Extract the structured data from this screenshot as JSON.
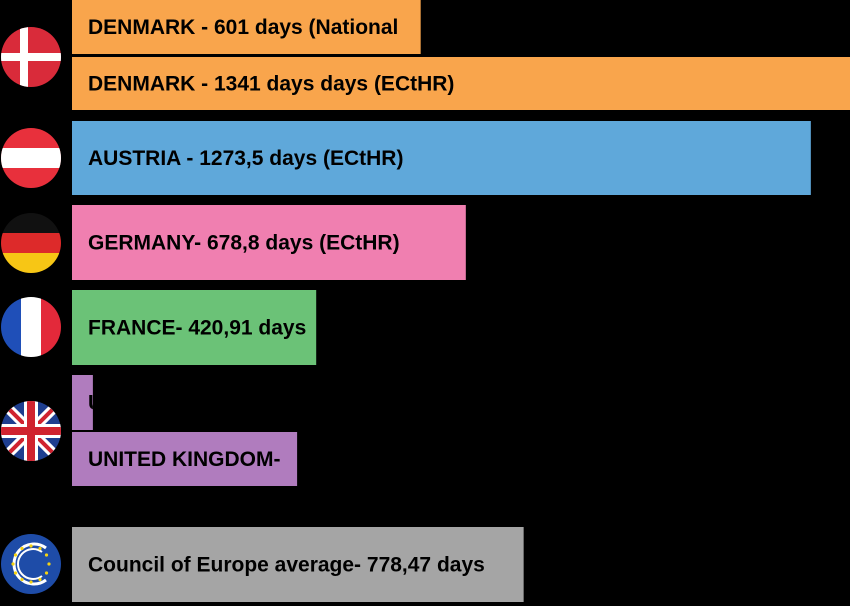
{
  "chart_data": {
    "type": "bar",
    "orientation": "horizontal",
    "title": "",
    "xlabel": "",
    "ylabel": "",
    "grid": false,
    "legend": "none",
    "background": "#000000",
    "xlim": [
      0,
      1341
    ],
    "bars": [
      {
        "label": "DENMARK - 601 days (National",
        "value": 601,
        "color": "#F9A54C",
        "flag": "denmark-flag-icon"
      },
      {
        "label": "DENMARK - 1341 days days (ECtHR)",
        "value": 1341,
        "color": "#F9A54C",
        "flag": "denmark-flag-icon"
      },
      {
        "label": "AUSTRIA - 1273,5 days (ECtHR)",
        "value": 1273.5,
        "color": "#5FA8DA",
        "flag": "austria-flag-icon"
      },
      {
        "label": "GERMANY- 678,8 days (ECtHR)",
        "value": 678.8,
        "color": "#F07FB0",
        "flag": "germany-flag-icon"
      },
      {
        "label": "FRANCE- 420,91 days",
        "value": 420.91,
        "color": "#6BC277",
        "flag": "france-flag-icon"
      },
      {
        "label": "U",
        "value": 36,
        "color": "#B07CBE",
        "flag": "uk-flag-icon"
      },
      {
        "label": "UNITED KINGDOM-",
        "value": 388,
        "color": "#B07CBE",
        "flag": "uk-flag-icon"
      },
      {
        "label": "Council of Europe average- 778,47 days",
        "value": 778.47,
        "color": "#A5A5A5",
        "flag": "council-of-europe-flag-icon"
      }
    ]
  }
}
